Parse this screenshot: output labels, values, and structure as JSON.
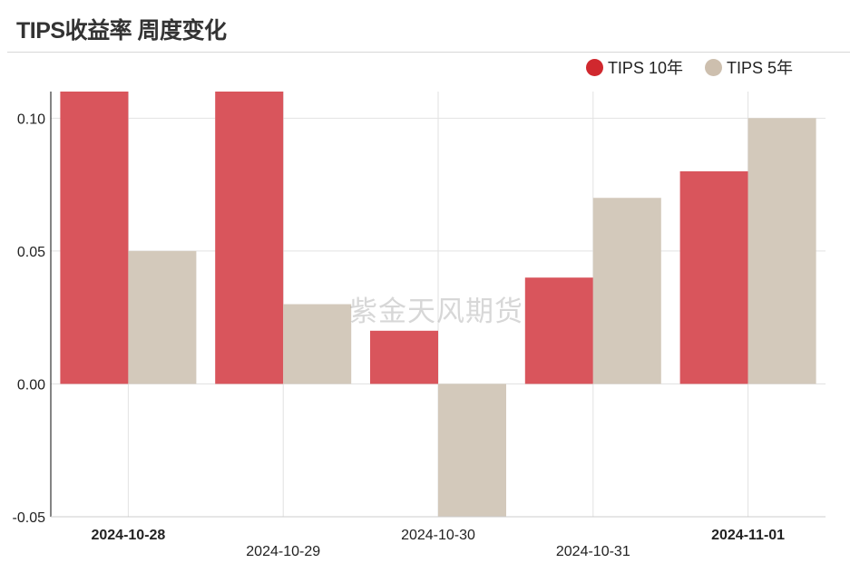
{
  "page": {
    "title": "TIPS收益率 周度变化",
    "watermark": "紫金天风期货"
  },
  "chart_data": {
    "type": "bar",
    "categories": [
      "2024-10-28",
      "2024-10-29",
      "2024-10-30",
      "2024-10-31",
      "2024-11-01"
    ],
    "bold_categories": [
      "2024-10-28",
      "2024-11-01"
    ],
    "series": [
      {
        "name": "TIPS 10年",
        "color": "#d9555c",
        "legend_color": "#d0282e",
        "values": [
          0.13,
          0.13,
          0.02,
          0.04,
          0.08
        ]
      },
      {
        "name": "TIPS 5年",
        "color": "#d3c9bb",
        "legend_color": "#cdbfae",
        "values": [
          0.05,
          0.03,
          -0.05,
          0.07,
          0.1
        ]
      }
    ],
    "y_ticks": [
      "0.10",
      "0.05",
      "0.00",
      "-0.05"
    ],
    "ylim": [
      -0.05,
      0.11
    ],
    "grid": true,
    "legend_position": "top-right"
  }
}
